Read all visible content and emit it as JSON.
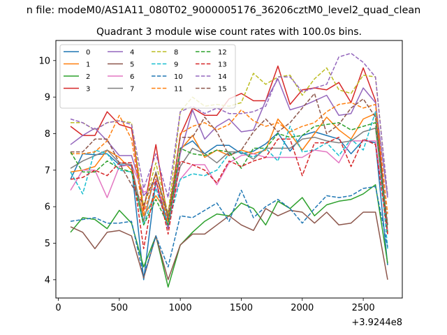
{
  "chart_data": {
    "type": "line",
    "suptitle": "n file: modeM0/AS1A11_080T02_9000005176_36206cztM0_level2_quad_clean",
    "title": "Quadrant 3 module wise count rates with 100.0s bins.",
    "xlabel": "",
    "ylabel": "",
    "x_offset_label": "+3.9244e8",
    "xlim": [
      -20,
      2820
    ],
    "ylim": [
      3.5,
      10.55
    ],
    "xticks": [
      0,
      500,
      1000,
      1500,
      2000,
      2500
    ],
    "yticks": [
      4,
      5,
      6,
      7,
      8,
      9,
      10
    ],
    "legend_position": "upper-left",
    "legend_columns": 4,
    "x": [
      100,
      200,
      300,
      400,
      500,
      600,
      700,
      800,
      900,
      1000,
      1100,
      1200,
      1300,
      1400,
      1500,
      1600,
      1700,
      1800,
      1900,
      2000,
      2100,
      2200,
      2300,
      2400,
      2500,
      2600,
      2700
    ],
    "series": [
      {
        "name": "0",
        "color": "#1f77b4",
        "dash": "solid",
        "values": [
          6.75,
          7.45,
          7.42,
          7.45,
          7.15,
          7.12,
          4.0,
          6.7,
          5.5,
          7.6,
          7.8,
          7.45,
          7.68,
          7.68,
          7.45,
          7.52,
          7.72,
          8.02,
          7.52,
          7.95,
          8.05,
          7.95,
          7.85,
          7.45,
          7.82,
          7.75,
          4.4
        ]
      },
      {
        "name": "1",
        "color": "#ff7f0e",
        "dash": "solid",
        "values": [
          6.95,
          7.0,
          7.1,
          7.55,
          7.35,
          7.0,
          5.75,
          6.3,
          5.8,
          7.55,
          7.95,
          7.35,
          7.55,
          7.4,
          7.55,
          7.45,
          7.55,
          8.4,
          8.0,
          7.55,
          8.0,
          8.45,
          8.1,
          7.85,
          8.4,
          8.55,
          5.3
        ]
      },
      {
        "name": "2",
        "color": "#2ca02c",
        "dash": "solid",
        "values": [
          5.3,
          5.7,
          5.65,
          5.4,
          5.9,
          5.55,
          4.35,
          5.2,
          3.8,
          4.95,
          5.3,
          5.6,
          5.8,
          5.75,
          6.1,
          5.95,
          5.5,
          6.15,
          5.95,
          6.25,
          5.75,
          6.05,
          6.15,
          6.2,
          6.35,
          6.6,
          4.45
        ]
      },
      {
        "name": "3",
        "color": "#d62728",
        "dash": "solid",
        "values": [
          8.2,
          7.95,
          7.95,
          8.6,
          8.25,
          8.15,
          5.9,
          7.7,
          5.6,
          7.95,
          8.7,
          8.5,
          8.5,
          8.95,
          9.1,
          8.9,
          8.9,
          9.85,
          8.8,
          9.2,
          9.25,
          9.2,
          9.4,
          8.85,
          9.8,
          8.9,
          5.25
        ]
      },
      {
        "name": "4",
        "color": "#9467bd",
        "dash": "solid",
        "values": [
          7.7,
          7.95,
          8.15,
          7.8,
          7.4,
          7.4,
          6.3,
          6.7,
          5.4,
          7.45,
          8.65,
          7.85,
          8.2,
          8.4,
          8.05,
          8.1,
          8.9,
          9.5,
          8.65,
          8.75,
          8.9,
          9.05,
          8.5,
          8.55,
          9.25,
          8.85,
          6.25
        ]
      },
      {
        "name": "5",
        "color": "#8c564b",
        "dash": "solid",
        "values": [
          5.45,
          5.3,
          4.85,
          5.3,
          5.35,
          5.2,
          4.05,
          5.2,
          4.0,
          4.95,
          5.25,
          5.25,
          5.5,
          5.75,
          5.5,
          5.35,
          5.95,
          5.75,
          5.9,
          5.85,
          5.55,
          5.85,
          5.5,
          5.55,
          5.85,
          5.85,
          4.0
        ]
      },
      {
        "name": "6",
        "color": "#e377c2",
        "dash": "solid",
        "values": [
          6.45,
          7.0,
          7.0,
          6.25,
          7.1,
          7.15,
          6.4,
          6.5,
          5.85,
          6.75,
          7.15,
          7.15,
          6.6,
          7.2,
          7.4,
          7.45,
          7.35,
          7.35,
          7.35,
          7.35,
          7.55,
          7.5,
          7.2,
          7.8,
          7.8,
          7.8,
          5.35
        ]
      },
      {
        "name": "7",
        "color": "#7f7f7f",
        "dash": "solid",
        "values": [
          7.05,
          7.25,
          7.4,
          7.55,
          7.2,
          7.15,
          5.6,
          6.95,
          5.7,
          7.1,
          7.6,
          7.45,
          7.2,
          7.5,
          7.5,
          7.3,
          7.6,
          7.6,
          7.6,
          7.85,
          7.9,
          7.8,
          7.75,
          7.8,
          8.05,
          8.15,
          5.5
        ]
      },
      {
        "name": "8",
        "color": "#bcbd22",
        "dash": "dashed",
        "values": [
          8.3,
          8.3,
          8.1,
          8.3,
          8.35,
          8.3,
          6.0,
          7.2,
          5.8,
          8.6,
          9.0,
          8.75,
          8.8,
          8.75,
          8.85,
          9.65,
          9.35,
          9.55,
          9.6,
          9.05,
          9.5,
          9.8,
          9.2,
          9.1,
          9.6,
          9.55,
          6.3
        ]
      },
      {
        "name": "9",
        "color": "#17becf",
        "dash": "dashed",
        "values": [
          6.95,
          6.35,
          7.55,
          7.45,
          7.0,
          6.95,
          5.5,
          6.5,
          5.5,
          6.75,
          6.9,
          6.85,
          7.0,
          7.45,
          7.5,
          7.35,
          7.6,
          7.25,
          8.2,
          7.5,
          7.55,
          7.75,
          7.4,
          7.85,
          7.55,
          8.6,
          4.85
        ]
      },
      {
        "name": "10",
        "color": "#1f77b4",
        "dash": "dashed",
        "values": [
          5.6,
          5.65,
          5.7,
          5.55,
          5.55,
          5.6,
          4.1,
          5.2,
          4.35,
          5.75,
          5.7,
          5.9,
          6.1,
          5.6,
          6.45,
          5.7,
          6.0,
          6.2,
          5.95,
          5.55,
          5.95,
          6.3,
          6.25,
          6.3,
          6.5,
          6.55,
          4.9
        ]
      },
      {
        "name": "11",
        "color": "#ff7f0e",
        "dash": "dashed",
        "values": [
          7.45,
          7.45,
          7.5,
          7.8,
          8.5,
          7.85,
          5.8,
          6.9,
          5.55,
          8.0,
          8.2,
          8.3,
          8.1,
          8.25,
          8.65,
          8.35,
          8.2,
          8.3,
          8.05,
          8.2,
          8.3,
          8.6,
          8.8,
          8.85,
          8.7,
          8.8,
          5.8
        ]
      },
      {
        "name": "12",
        "color": "#2ca02c",
        "dash": "dashed",
        "values": [
          7.5,
          6.95,
          6.95,
          7.25,
          7.05,
          6.95,
          5.5,
          6.2,
          5.5,
          7.6,
          7.45,
          7.4,
          7.55,
          7.5,
          7.05,
          7.6,
          7.6,
          8.0,
          7.9,
          7.95,
          8.2,
          8.25,
          8.3,
          8.1,
          8.2,
          8.3,
          5.3
        ]
      },
      {
        "name": "13",
        "color": "#d62728",
        "dash": "dashed",
        "values": [
          6.75,
          6.8,
          7.0,
          6.85,
          7.2,
          7.2,
          4.85,
          6.75,
          5.25,
          7.25,
          7.15,
          7.0,
          6.65,
          7.25,
          7.1,
          7.25,
          7.35,
          7.85,
          7.85,
          6.85,
          7.75,
          7.75,
          7.9,
          7.1,
          7.85,
          7.7,
          5.25
        ]
      },
      {
        "name": "14",
        "color": "#9467bd",
        "dash": "dashed",
        "values": [
          8.4,
          8.3,
          8.1,
          8.3,
          8.35,
          8.25,
          6.5,
          7.45,
          6.25,
          8.6,
          8.75,
          8.55,
          8.7,
          8.55,
          8.55,
          8.6,
          8.75,
          9.55,
          9.55,
          9.15,
          9.25,
          9.35,
          10.1,
          10.2,
          9.95,
          9.55,
          6.3
        ]
      },
      {
        "name": "15",
        "color": "#8c564b",
        "dash": "dashed",
        "values": [
          7.5,
          7.5,
          7.85,
          7.85,
          7.2,
          6.6,
          6.05,
          6.9,
          5.75,
          7.9,
          7.9,
          8.45,
          8.05,
          7.4,
          7.55,
          8.05,
          8.4,
          8.05,
          8.3,
          8.7,
          9.1,
          8.0,
          8.25,
          8.7,
          8.95,
          8.45,
          5.5
        ]
      }
    ]
  }
}
